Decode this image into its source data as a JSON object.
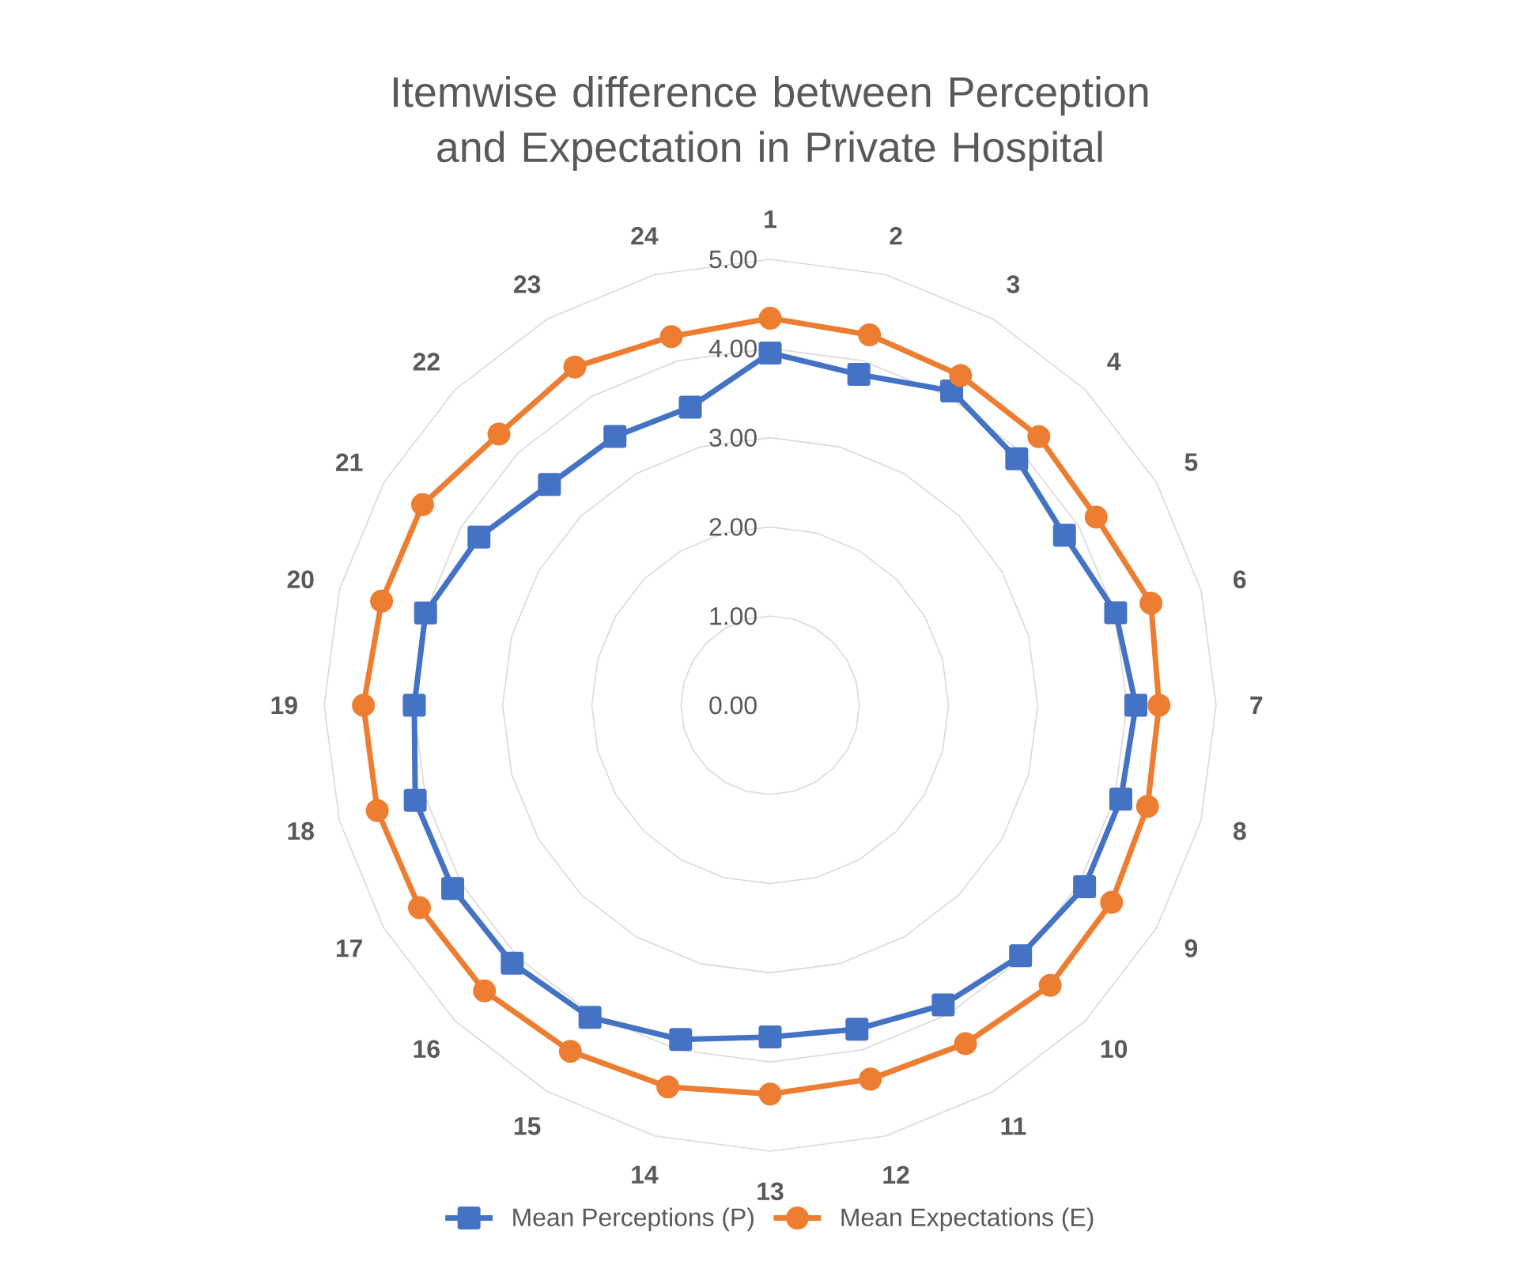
{
  "chart_data": {
    "type": "radar",
    "title": "Itemwise difference between Perception and Expectation in Private Hospital",
    "categories": [
      "1",
      "2",
      "3",
      "4",
      "5",
      "6",
      "7",
      "8",
      "9",
      "10",
      "11",
      "12",
      "13",
      "14",
      "15",
      "16",
      "17",
      "18",
      "19",
      "20",
      "21",
      "22",
      "23",
      "24"
    ],
    "series": [
      {
        "name": "Mean Perceptions (P)",
        "color": "#4472c4",
        "marker": "square",
        "values": [
          3.95,
          3.84,
          4.07,
          3.91,
          3.81,
          4.01,
          4.1,
          4.07,
          4.07,
          3.97,
          3.88,
          3.76,
          3.72,
          3.88,
          4.04,
          4.09,
          4.11,
          4.12,
          3.99,
          4.0,
          3.77,
          3.5,
          3.48,
          3.46
        ]
      },
      {
        "name": "Mean Expectations (E)",
        "color": "#ed7d31",
        "marker": "circle",
        "values": [
          4.34,
          4.3,
          4.27,
          4.26,
          4.22,
          4.42,
          4.36,
          4.38,
          4.42,
          4.44,
          4.38,
          4.34,
          4.36,
          4.43,
          4.48,
          4.53,
          4.54,
          4.56,
          4.56,
          4.51,
          4.5,
          4.3,
          4.38,
          4.28
        ]
      }
    ],
    "ylim": [
      0,
      5
    ],
    "yticks": [
      {
        "value": 0,
        "label": "0.00"
      },
      {
        "value": 1,
        "label": "1.00"
      },
      {
        "value": 2,
        "label": "2.00"
      },
      {
        "value": 3,
        "label": "3.00"
      },
      {
        "value": 4,
        "label": "4.00"
      },
      {
        "value": 5,
        "label": "5.00"
      }
    ],
    "grid": true,
    "legend": "bottom",
    "line_style": "solid"
  }
}
